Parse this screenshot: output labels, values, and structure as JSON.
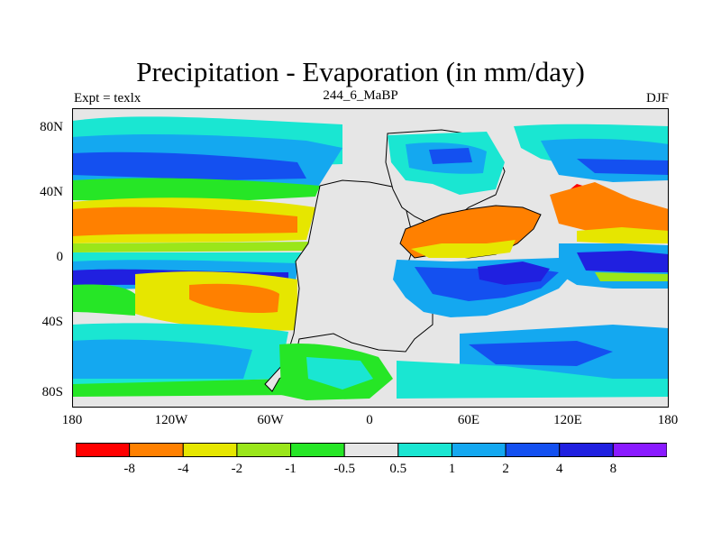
{
  "title": "Precipitation - Evaporation (in mm/day)",
  "subtitle": "244_6_MaBP",
  "left_label": "Expt = texlx",
  "right_label": "DJF",
  "map": {
    "x_ticks": [
      "180",
      "120W",
      "60W",
      "0",
      "60E",
      "120E",
      "180"
    ],
    "y_ticks": [
      "80N",
      "40N",
      "0",
      "40S",
      "80S"
    ],
    "land_color": "#e6e6e6",
    "border_color": "#000000"
  },
  "colorbar": {
    "colors": [
      "#ff0000",
      "#ff8000",
      "#e6e600",
      "#9ae61a",
      "#26e626",
      "#e6e6e6",
      "#1ae6d2",
      "#14a8f0",
      "#1450f0",
      "#2020e0",
      "#8a1aff"
    ],
    "labels": [
      "-8",
      "-4",
      "-2",
      "-1",
      "-0.5",
      "0.5",
      "1",
      "2",
      "4",
      "8"
    ]
  }
}
